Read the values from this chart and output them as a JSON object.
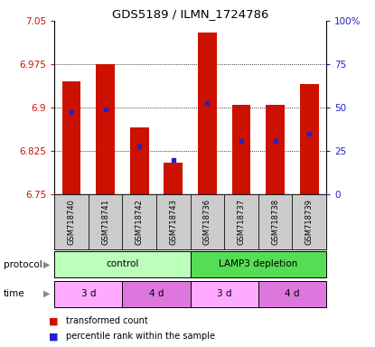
{
  "title": "GDS5189 / ILMN_1724786",
  "samples": [
    "GSM718740",
    "GSM718741",
    "GSM718742",
    "GSM718743",
    "GSM718736",
    "GSM718737",
    "GSM718738",
    "GSM718739"
  ],
  "bar_values": [
    6.945,
    6.975,
    6.865,
    6.805,
    7.03,
    6.905,
    6.905,
    6.94
  ],
  "bar_bottom": 6.75,
  "percentile_values": [
    6.893,
    6.897,
    6.833,
    6.81,
    6.908,
    6.843,
    6.843,
    6.855
  ],
  "ylim_left": [
    6.75,
    7.05
  ],
  "ylim_right": [
    0,
    100
  ],
  "yticks_left": [
    6.75,
    6.825,
    6.9,
    6.975,
    7.05
  ],
  "yticks_right": [
    0,
    25,
    50,
    75,
    100
  ],
  "ytick_labels_left": [
    "6.75",
    "6.825",
    "6.9",
    "6.975",
    "7.05"
  ],
  "ytick_labels_right": [
    "0",
    "25",
    "50",
    "75",
    "100%"
  ],
  "bar_color": "#cc1100",
  "blue_color": "#2222cc",
  "protocol_groups": [
    {
      "label": "control",
      "start": 0,
      "end": 4,
      "color": "#bbffbb"
    },
    {
      "label": "LAMP3 depletion",
      "start": 4,
      "end": 8,
      "color": "#55dd55"
    }
  ],
  "time_groups": [
    {
      "label": "3 d",
      "start": 0,
      "end": 2,
      "color": "#ffaaff"
    },
    {
      "label": "4 d",
      "start": 2,
      "end": 4,
      "color": "#dd77dd"
    },
    {
      "label": "3 d",
      "start": 4,
      "end": 6,
      "color": "#ffaaff"
    },
    {
      "label": "4 d",
      "start": 6,
      "end": 8,
      "color": "#dd77dd"
    }
  ],
  "legend_items": [
    {
      "color": "#cc1100",
      "label": "transformed count"
    },
    {
      "color": "#2222cc",
      "label": "percentile rank within the sample"
    }
  ],
  "sample_bg_color": "#cccccc",
  "grid_color": "#000000",
  "protocol_label": "protocol",
  "time_label": "time",
  "grid_yticks": [
    6.825,
    6.9,
    6.975
  ]
}
